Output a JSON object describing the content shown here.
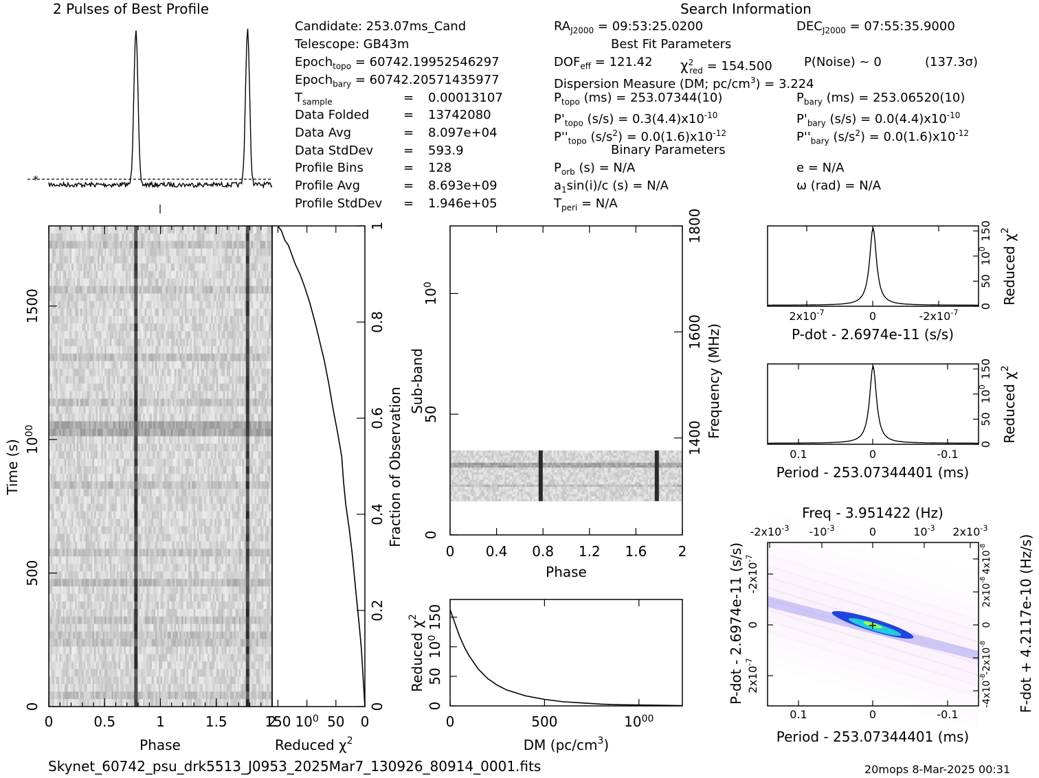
{
  "header": {
    "profile_title": "2 Pulses of Best Profile",
    "search_title": "Search Information",
    "best_fit_title": "Best Fit Parameters",
    "binary_title": "Binary Parameters"
  },
  "info_left": [
    {
      "label": "Candidate:  253.07ms_Cand"
    },
    {
      "label": "Telescope:  GB43m"
    },
    {
      "label": "Epoch",
      "sub": "topo",
      "value": " = 60742.19952546297"
    },
    {
      "label": "Epoch",
      "sub": "bary",
      "value": " = 60742.20571435977"
    },
    {
      "label": "T",
      "sub": "sample",
      "eq": "=",
      "value": "0.00013107"
    },
    {
      "label": "Data Folded",
      "eq": "=",
      "value": "13742080"
    },
    {
      "label": "Data Avg",
      "eq": "=",
      "value": "8.097e+04"
    },
    {
      "label": "Data StdDev",
      "eq": "=",
      "value": "593.9"
    },
    {
      "label": "Profile Bins",
      "eq": "=",
      "value": "128"
    },
    {
      "label": "Profile Avg",
      "eq": "=",
      "value": "8.693e+09"
    },
    {
      "label": "Profile StdDev",
      "eq": "=",
      "value": "1.946e+05"
    }
  ],
  "search_info": {
    "ra_label": "RA",
    "ra_sub": "J2000",
    "ra_value": " = 09:53:25.0200",
    "dec_label": "DEC",
    "dec_sub": "J2000",
    "dec_value": " = 07:55:35.9000",
    "dof_label": "DOF",
    "dof_sub": "eff",
    "dof_value": " = 121.42",
    "chi_label": "χ",
    "chi_sup": "2",
    "chi_sub": "red",
    "chi_value": " = 154.500",
    "pnoise": "P(Noise) ~ 0",
    "sigma": "(137.3σ)",
    "dm_label": "Dispersion Measure (DM; pc/cm",
    "dm_sup": "3",
    "dm_value": ") = 3.224",
    "ptopo_label": "P",
    "ptopo_sub": "topo",
    "ptopo_value": " (ms) =  253.07344(10)",
    "pbary_label": "P",
    "pbary_sub": "bary",
    "pbary_value": " (ms) =  253.06520(10)",
    "pdtopo_label": "P'",
    "pdtopo_sub": "topo",
    "pdtopo_value": " (s/s) =  0.3(4.4)x10",
    "pdtopo_exp": "-10",
    "pdbary_label": "P'",
    "pdbary_sub": "bary",
    "pdbary_value": " (s/s) = 0.0(4.4)x10",
    "pdbary_exp": "-10",
    "pddtopo_label": "P''",
    "pddtopo_sub": "topo",
    "pddtopo_value": " (s/s",
    "pddtopo_sup": "2",
    "pddtopo_value2": ") = 0.0(1.6)x10",
    "pddtopo_exp": "-12",
    "pddbary_label": "P''",
    "pddbary_sub": "bary",
    "pddbary_value": " (s/s",
    "pddbary_sup": "2",
    "pddbary_value2": ") = 0.0(1.6)x10",
    "pddbary_exp": "-12",
    "porb_label": "P",
    "porb_sub": "orb",
    "porb_value": " (s) = N/A",
    "e_value": "e = N/A",
    "a1_label": "a",
    "a1_sub": "1",
    "a1_value": "sin(i)/c (s) = N/A",
    "omega_value": "ω (rad) = N/A",
    "tperi_label": "T",
    "tperi_sub": "peri",
    "tperi_value": " = N/A"
  },
  "footer": {
    "filename": "Skynet_60742_psu_drk5513_J0953_2025Mar7_130926_80914_0001.fits",
    "stamp": "20mops   8-Mar-2025 00:31"
  },
  "chart_data": [
    {
      "type": "line",
      "panel": "profile",
      "title": "2 Pulses of Best Profile",
      "x_range": [
        0,
        2
      ],
      "pulse_phases": [
        0.78,
        1.78
      ],
      "baseline_marker": "*"
    },
    {
      "type": "heatmap",
      "panel": "time-phase",
      "xlabel": "Phase",
      "ylabel": "Time (s)",
      "xlim": [
        0,
        2
      ],
      "ylim": [
        0,
        1800
      ],
      "xticks": [
        "0",
        "0.5",
        "1",
        "1.5",
        "2"
      ],
      "yticks": [
        "0",
        "500",
        "1000",
        "1500"
      ],
      "pulse_phases": [
        0.78,
        1.78
      ]
    },
    {
      "type": "line",
      "panel": "time-chi2",
      "xlabel": "Reduced χ2",
      "x_reversed": true,
      "xticks": [
        "150",
        "100",
        "50",
        "0"
      ],
      "ylabel_right": "Fraction of Observation",
      "yticks_right": [
        "0",
        "0.2",
        "0.4",
        "0.6",
        "0.8",
        "1"
      ],
      "x": [
        0,
        2,
        4,
        6,
        9,
        14,
        18,
        22,
        27,
        33,
        37,
        40,
        47,
        55,
        62,
        70,
        78,
        86,
        95,
        103,
        112,
        120,
        126,
        132,
        138,
        144,
        150
      ],
      "y": [
        0,
        0.04,
        0.08,
        0.12,
        0.16,
        0.22,
        0.27,
        0.32,
        0.37,
        0.42,
        0.47,
        0.52,
        0.57,
        0.62,
        0.67,
        0.72,
        0.76,
        0.8,
        0.84,
        0.87,
        0.9,
        0.92,
        0.94,
        0.96,
        0.97,
        0.99,
        1
      ]
    },
    {
      "type": "heatmap",
      "panel": "subband-phase",
      "xlabel": "Phase",
      "ylabel": "Sub-band",
      "ylabel_right": "Frequency (MHz)",
      "xlim": [
        0,
        2
      ],
      "ylim": [
        0,
        128
      ],
      "xticks": [
        "0",
        "0.4",
        "0.8",
        "1.2",
        "1.6",
        "2"
      ],
      "yticks": [
        "0",
        "50",
        "100"
      ],
      "yticks_right": [
        "1400",
        "1600",
        "1800"
      ],
      "active_subbands": [
        14,
        35
      ],
      "pulse_phases": [
        0.78,
        1.78
      ]
    },
    {
      "type": "line",
      "panel": "dm-chi2",
      "xlabel": "DM (pc/cm3)",
      "ylabel": "Reduced χ2",
      "xlim": [
        0,
        1230
      ],
      "ylim": [
        0,
        180
      ],
      "xticks": [
        "0",
        "500",
        "1000"
      ],
      "yticks": [
        "0",
        "50",
        "100",
        "150"
      ],
      "x": [
        0,
        25,
        50,
        75,
        100,
        150,
        200,
        250,
        300,
        400,
        500,
        600,
        700,
        800,
        900,
        1000,
        1100,
        1230
      ],
      "y": [
        163,
        140,
        118,
        100,
        85,
        62,
        46,
        35,
        27,
        17,
        11,
        7,
        5,
        3,
        2,
        1.5,
        1,
        0.5
      ]
    },
    {
      "type": "line",
      "panel": "pdot-chi2",
      "xlabel": "P-dot - 2.6974e-11 (s/s)",
      "ylabel_right": "Reduced χ2",
      "xticks": [
        "2x10-7",
        "0",
        "-2x10-7"
      ],
      "yticks_right": [
        "0",
        "50",
        "100",
        "150"
      ],
      "ylim": [
        0,
        160
      ],
      "peak": 154.5
    },
    {
      "type": "line",
      "panel": "period-chi2",
      "xlabel": "Period - 253.07344401 (ms)",
      "ylabel_right": "Reduced χ2",
      "xticks": [
        "0.1",
        "0",
        "-0.1"
      ],
      "yticks_right": [
        "0",
        "50",
        "100",
        "150"
      ],
      "ylim": [
        0,
        160
      ],
      "peak": 154.5
    },
    {
      "type": "heatmap",
      "panel": "period-pdot",
      "title": "Freq - 3.951422 (Hz)",
      "xlabel": "Period - 253.07344401 (ms)",
      "ylabel": "P-dot - 2.6974e-11 (s/s)",
      "ylabel_right": "F-dot + 4.2117e-10 (Hz/s)",
      "xticks": [
        "0.1",
        "0",
        "-0.1"
      ],
      "xticks_top": [
        "-2x10-3",
        "-10-3",
        "0",
        "10-3",
        "2x10-3"
      ],
      "yticks": [
        "-2x10-7",
        "0",
        "2x10-7"
      ],
      "yticks_right": [
        "4x10-8",
        "2x10-8",
        "0",
        "-2x10-8",
        "-4x10-8"
      ],
      "best_marker": "+"
    }
  ],
  "axes_text": {
    "phase": "Phase",
    "time": "Time (s)",
    "reduced": "Reduced χ",
    "chi_sup": "2",
    "fraction": "Fraction of Observation",
    "subband": "Sub-band",
    "frequency": "Frequency (MHz)",
    "dm": "DM (pc/cm",
    "dm_sup": "3",
    "dm_close": ")",
    "pdot_x": "P-dot - 2.6974e-11 (s/s)",
    "period_x": "Period - 253.07344401 (ms)",
    "freq_top": "Freq - 3.951422 (Hz)",
    "pdot_y": "P-dot - 2.6974e-11 (s/s)",
    "fdot_y": "F-dot + 4.2117e-10 (Hz/s)"
  }
}
